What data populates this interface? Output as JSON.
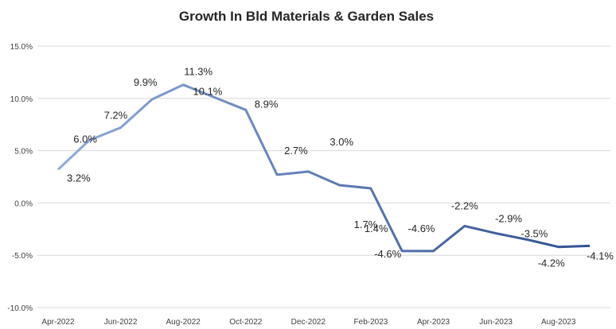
{
  "chart_data": {
    "type": "line",
    "title": "Growth In Bld Materials & Garden Sales",
    "xlabel": "",
    "ylabel": "",
    "x": [
      "Apr-2022",
      "May-2022",
      "Jun-2022",
      "Jul-2022",
      "Aug-2022",
      "Sep-2022",
      "Oct-2022",
      "Nov-2022",
      "Dec-2022",
      "Jan-2023",
      "Feb-2023",
      "Mar-2023",
      "Apr-2023",
      "May-2023",
      "Jun-2023",
      "Jul-2023",
      "Aug-2023",
      "Sep-2023"
    ],
    "x_tick_labels": [
      "Apr-2022",
      "Jun-2022",
      "Aug-2022",
      "Oct-2022",
      "Dec-2022",
      "Feb-2023",
      "Apr-2023",
      "Jun-2023",
      "Aug-2023"
    ],
    "values": [
      3.2,
      6.0,
      7.2,
      9.9,
      11.3,
      10.1,
      8.9,
      2.7,
      3.0,
      1.7,
      1.4,
      -4.6,
      -4.6,
      -2.2,
      -2.9,
      -3.5,
      -4.2,
      -4.1
    ],
    "data_labels": [
      "3.2%",
      "6.0%",
      "7.2%",
      "9.9%",
      "11.3%",
      "10.1%",
      "8.9%",
      "2.7%",
      "3.0%",
      "1.7%",
      "1.4%",
      "-4.6%",
      "-4.6%",
      "-2.2%",
      "-2.9%",
      "-3.5%",
      "-4.2%",
      "-4.1%"
    ],
    "ylim": [
      -10.0,
      15.0
    ],
    "y_ticks": [
      15.0,
      10.0,
      5.0,
      0.0,
      -5.0,
      -10.0
    ],
    "y_tick_labels": [
      "15.0%",
      "10.0%",
      "5.0%",
      "0.0%",
      "-5.0%",
      "-10.0%"
    ],
    "grid": true,
    "legend": "none",
    "colors": {
      "line_start": "#8faadc",
      "line_end": "#2f4f8f"
    }
  }
}
